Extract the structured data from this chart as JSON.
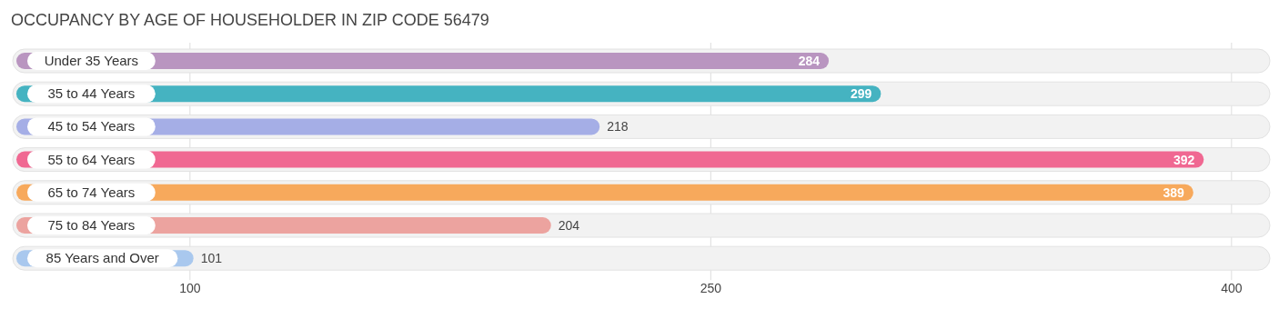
{
  "chart_data": {
    "type": "bar",
    "orientation": "horizontal",
    "title": "OCCUPANCY BY AGE OF HOUSEHOLDER IN ZIP CODE 56479",
    "categories": [
      "Under 35 Years",
      "35 to 44 Years",
      "45 to 54 Years",
      "55 to 64 Years",
      "65 to 74 Years",
      "75 to 84 Years",
      "85 Years and Over"
    ],
    "values": [
      284,
      299,
      218,
      392,
      389,
      204,
      101
    ],
    "colors": [
      "#b995c0",
      "#45b3c1",
      "#a5aee6",
      "#f06892",
      "#f7a95c",
      "#eca39f",
      "#a9c8ee"
    ],
    "xlim": [
      50,
      410
    ],
    "xticks": [
      100,
      250,
      400
    ],
    "grid": "x",
    "data_labels": true
  }
}
